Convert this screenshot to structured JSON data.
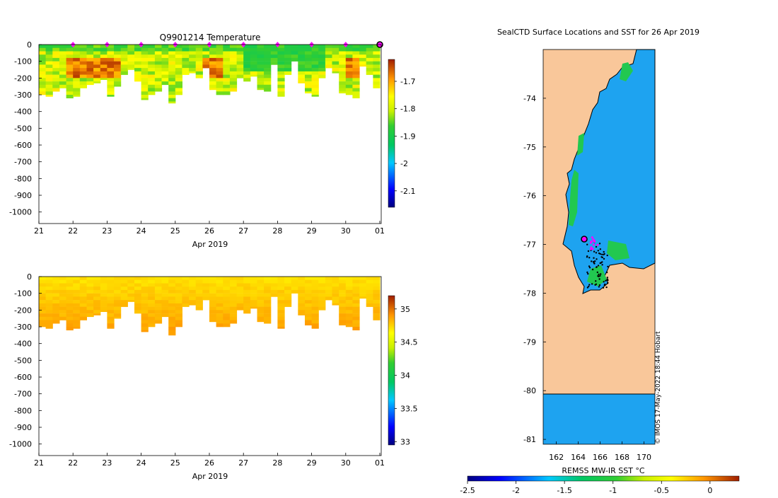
{
  "chart_data": [
    {
      "type": "heatmap",
      "id": "temp",
      "title": "Q9901214  Temperature",
      "xlabel": "Apr 2019",
      "ylabel": "",
      "x_ticks": [
        "21",
        "22",
        "23",
        "24",
        "25",
        "26",
        "27",
        "28",
        "29",
        "30",
        "01"
      ],
      "y_ticks": [
        0,
        -100,
        -200,
        -300,
        -400,
        -500,
        -600,
        -700,
        -800,
        -900,
        -1000
      ],
      "ylim": [
        -1060,
        10
      ],
      "colorbar": {
        "ticks": [
          "-1.7",
          "-1.8",
          "-1.9",
          "-2",
          "-2.1"
        ],
        "range": [
          -2.16,
          -1.62
        ]
      },
      "profile_days": [
        21.1,
        21.3,
        21.5,
        21.7,
        21.9,
        22.1,
        22.3,
        22.5,
        22.7,
        22.9,
        23.1,
        23.3,
        23.5,
        23.7,
        23.9,
        24.1,
        24.3,
        24.5,
        24.7,
        24.9,
        25.1,
        25.3,
        25.5,
        25.7,
        25.9,
        26.1,
        26.3,
        26.5,
        26.7,
        26.9,
        27.1,
        27.3,
        27.5,
        27.7,
        27.9,
        28.1,
        28.3,
        28.5,
        28.7,
        28.9,
        29.1,
        29.3,
        29.5,
        29.7,
        29.9,
        30.1,
        30.3,
        30.5,
        30.7,
        30.9
      ],
      "profile_depths": [
        300,
        310,
        280,
        260,
        320,
        310,
        260,
        240,
        230,
        210,
        310,
        250,
        180,
        150,
        220,
        330,
        300,
        280,
        240,
        350,
        300,
        180,
        170,
        200,
        140,
        270,
        300,
        300,
        280,
        200,
        220,
        190,
        270,
        280,
        120,
        310,
        180,
        100,
        230,
        290,
        310,
        200,
        140,
        170,
        290,
        300,
        320,
        130,
        180,
        260
      ],
      "surface_markers": [
        22.0,
        23.0,
        24.0,
        25.0,
        26.0,
        27.0,
        28.0,
        29.0,
        30.0
      ],
      "current_marker": 31.0
    },
    {
      "type": "heatmap",
      "id": "salinity",
      "title": "",
      "xlabel": "Apr 2019",
      "x_ticks": [
        "21",
        "22",
        "23",
        "24",
        "25",
        "26",
        "27",
        "28",
        "29",
        "30",
        "01"
      ],
      "y_ticks": [
        0,
        -100,
        -200,
        -300,
        -400,
        -500,
        -600,
        -700,
        -800,
        -900,
        -1000
      ],
      "ylim": [
        -1060,
        10
      ],
      "colorbar": {
        "ticks": [
          "35",
          "34.5",
          "34",
          "33.5",
          "33"
        ],
        "range": [
          32.95,
          35.2
        ]
      }
    },
    {
      "type": "map",
      "id": "sst-map",
      "title": "SealCTD Surface Locations and SST for 26 Apr 2019",
      "x_ticks": [
        "162",
        "164",
        "166",
        "168",
        "170"
      ],
      "y_ticks": [
        "-74",
        "-75",
        "-76",
        "-77",
        "-78",
        "-79",
        "-80",
        "-81"
      ],
      "lon_range": [
        160.8,
        171.0
      ],
      "lat_range": [
        -81.1,
        -73.0
      ],
      "colorbar_label": "REMSS MW-IR SST °C",
      "colorbar_ticks": [
        "-2.5",
        "-2",
        "-1.5",
        "-1",
        "-0.5",
        "0"
      ],
      "colorbar_range": [
        -2.5,
        0.3
      ],
      "current_position": {
        "lon": 164.8,
        "lat": -76.9
      }
    }
  ],
  "credit": "© IMOS 17-May-2022 18:44 Hobart",
  "colors": {
    "land": "#f9c79a",
    "sea": "#1ea3f0",
    "marker": "#ff00ff",
    "current_marker": "#000000"
  }
}
